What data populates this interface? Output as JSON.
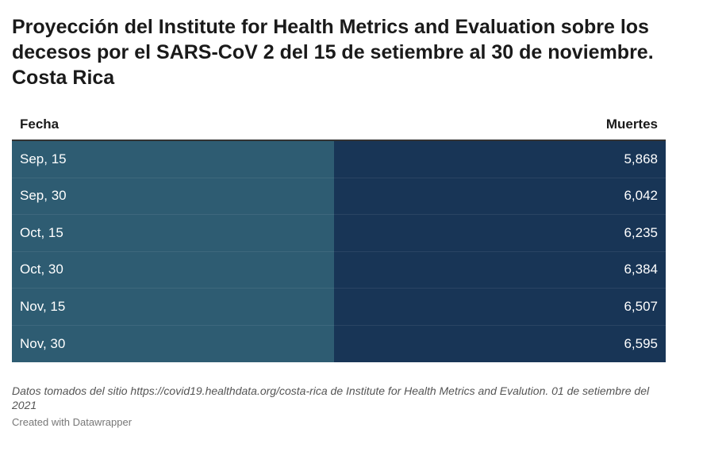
{
  "title": "Proyección del Institute for Health Metrics and Evaluation sobre los decesos por el SARS-CoV 2 del 15 de setiembre al 30 de noviembre. Costa Rica",
  "columns": [
    "Fecha",
    "Muertes"
  ],
  "rows": [
    {
      "date": "Sep, 15",
      "value": "5,868"
    },
    {
      "date": "Sep, 30",
      "value": "6,042"
    },
    {
      "date": "Oct, 15",
      "value": "6,235"
    },
    {
      "date": "Oct, 30",
      "value": "6,384"
    },
    {
      "date": "Nov, 15",
      "value": "6,507"
    },
    {
      "date": "Nov, 30",
      "value": "6,595"
    }
  ],
  "source": "Datos tomados del sitio https://covid19.healthdata.org/costa-rica de Institute for Health Metrics and Evalution. 01 de setiembre del 2021",
  "credit": "Created with Datawrapper",
  "chart_data": {
    "type": "table",
    "columns": [
      "Fecha",
      "Muertes"
    ],
    "categories": [
      "Sep, 15",
      "Sep, 30",
      "Oct, 15",
      "Oct, 30",
      "Nov, 15",
      "Nov, 30"
    ],
    "values": [
      5868,
      6042,
      6235,
      6384,
      6507,
      6595
    ]
  },
  "colors": {
    "date_cell": "#2e5c72",
    "value_cell": "#183556"
  }
}
